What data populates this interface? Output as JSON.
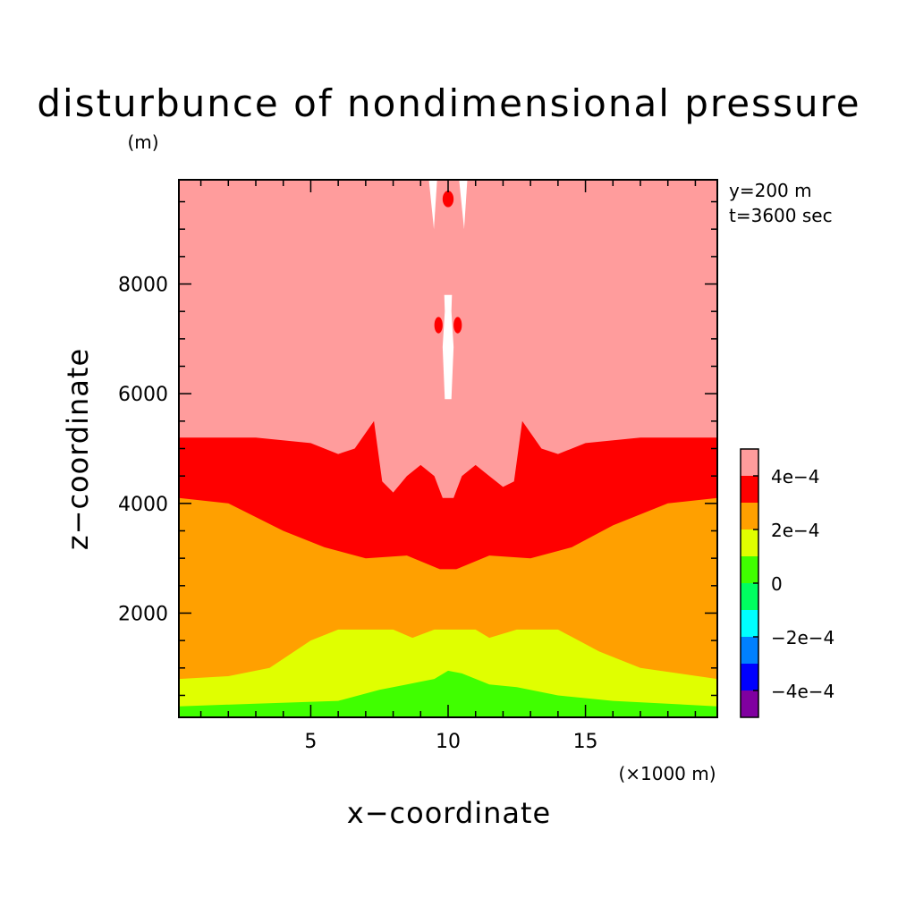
{
  "chart_data": {
    "type": "heatmap",
    "title": "disturbunce of nondimensional pressure",
    "xlabel": "x−coordinate",
    "ylabel": "z−coordinate",
    "yunit": "(m)",
    "xunit": "(×1000 m)",
    "annotations": [
      "y=200 m",
      "t=3600 sec"
    ],
    "xlim": [
      0.2,
      19.8
    ],
    "ylim": [
      100,
      9900
    ],
    "xticks": [
      5,
      10,
      15
    ],
    "xtick_labels": [
      "5",
      "10",
      "15"
    ],
    "yticks": [
      2000,
      4000,
      6000,
      8000
    ],
    "ytick_labels": [
      "2000",
      "4000",
      "6000",
      "8000"
    ],
    "grid": false,
    "colorbar": {
      "levels": [
        -0.0005,
        -0.0004,
        -0.0003,
        -0.0002,
        -0.0001,
        0,
        0.0001,
        0.0002,
        0.0003,
        0.0004,
        0.0005
      ],
      "colors": [
        "#8000a0",
        "#0000ff",
        "#0080ff",
        "#00ffff",
        "#00ff60",
        "#40ff00",
        "#e0ff00",
        "#ffa000",
        "#ff0000",
        "#ff9c9c"
      ],
      "tick_labels": [
        "−4e−4",
        "−2e−4",
        "0",
        "2e−4",
        "4e−4"
      ],
      "tick_values": [
        -0.0004,
        -0.0002,
        0,
        0.0002,
        0.0004
      ]
    },
    "bands": [
      {
        "name": "0 to 1e-4",
        "color": "#40ff00",
        "upper_z_at_x": [
          [
            0.2,
            300
          ],
          [
            3,
            350
          ],
          [
            6,
            400
          ],
          [
            7.5,
            600
          ],
          [
            8.5,
            700
          ],
          [
            9.5,
            800
          ],
          [
            10,
            950
          ],
          [
            10.5,
            900
          ],
          [
            11.5,
            700
          ],
          [
            12.5,
            650
          ],
          [
            14,
            500
          ],
          [
            16,
            400
          ],
          [
            19.8,
            300
          ]
        ]
      },
      {
        "name": "1e-4 to 2e-4",
        "color": "#e0ff00",
        "upper_z_at_x": [
          [
            0.2,
            800
          ],
          [
            2,
            850
          ],
          [
            3.5,
            1000
          ],
          [
            5,
            1500
          ],
          [
            6,
            1700
          ],
          [
            8,
            1700
          ],
          [
            8.7,
            1550
          ],
          [
            9.5,
            1700
          ],
          [
            11,
            1700
          ],
          [
            11.5,
            1550
          ],
          [
            12.5,
            1700
          ],
          [
            14,
            1700
          ],
          [
            15.5,
            1300
          ],
          [
            17,
            1000
          ],
          [
            19.8,
            800
          ]
        ]
      },
      {
        "name": "2e-4 to 3e-4",
        "color": "#ffa000",
        "upper_z_at_x": [
          [
            0.2,
            4100
          ],
          [
            2,
            4000
          ],
          [
            4,
            3500
          ],
          [
            5.5,
            3200
          ],
          [
            7,
            3000
          ],
          [
            8.5,
            3050
          ],
          [
            9.7,
            2800
          ],
          [
            10.3,
            2800
          ],
          [
            11.5,
            3050
          ],
          [
            13,
            3000
          ],
          [
            14.5,
            3200
          ],
          [
            16,
            3600
          ],
          [
            18,
            4000
          ],
          [
            19.8,
            4100
          ]
        ]
      },
      {
        "name": "3e-4 to 4e-4",
        "color": "#ff0000",
        "upper_z_at_x": [
          [
            0.2,
            5200
          ],
          [
            3,
            5200
          ],
          [
            5,
            5100
          ],
          [
            6,
            4900
          ],
          [
            6.6,
            5000
          ],
          [
            7.3,
            5500
          ],
          [
            7.6,
            4400
          ],
          [
            8,
            4200
          ],
          [
            8.5,
            4500
          ],
          [
            9,
            4700
          ],
          [
            9.5,
            4500
          ],
          [
            9.8,
            4100
          ],
          [
            10.2,
            4100
          ],
          [
            10.5,
            4500
          ],
          [
            11,
            4700
          ],
          [
            11.5,
            4500
          ],
          [
            12,
            4300
          ],
          [
            12.4,
            4400
          ],
          [
            12.7,
            5500
          ],
          [
            13.4,
            5000
          ],
          [
            14,
            4900
          ],
          [
            15,
            5100
          ],
          [
            17,
            5200
          ],
          [
            19.8,
            5200
          ]
        ]
      },
      {
        "name": "4e-4 to 5e-4",
        "color": "#ff9c9c",
        "upper_z_at_x": [
          [
            0.2,
            9900
          ],
          [
            19.8,
            9900
          ]
        ]
      }
    ],
    "features": [
      {
        "color": "#ffffff",
        "x": [
          9.8,
          10.2
        ],
        "z": [
          5900,
          7800
        ]
      },
      {
        "color": "#ff0000",
        "x": [
          9.5,
          9.8
        ],
        "z": [
          7100,
          7400
        ]
      },
      {
        "color": "#ff0000",
        "x": [
          10.2,
          10.5
        ],
        "z": [
          7100,
          7400
        ]
      },
      {
        "color": "#ffffff",
        "x": [
          9.3,
          9.6
        ],
        "z": [
          9000,
          9900
        ]
      },
      {
        "color": "#ffffff",
        "x": [
          10.4,
          10.7
        ],
        "z": [
          9000,
          9900
        ]
      },
      {
        "color": "#ff0000",
        "x": [
          9.8,
          10.2
        ],
        "z": [
          9400,
          9700
        ]
      }
    ]
  }
}
